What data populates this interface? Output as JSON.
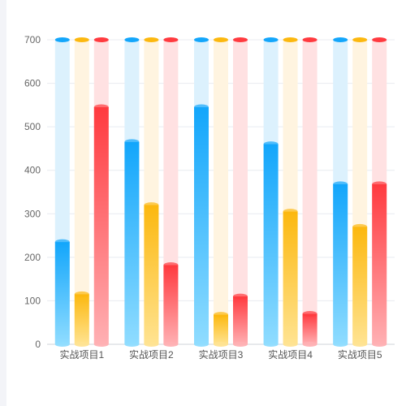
{
  "chart_data": {
    "type": "bar",
    "ylim": [
      0,
      700
    ],
    "yticks": [
      0,
      100,
      200,
      300,
      400,
      500,
      600,
      700
    ],
    "categories": [
      "实战项目1",
      "实战项目2",
      "实战项目3",
      "实战项目4",
      "实战项目5"
    ],
    "series": [
      {
        "values": [
          235,
          465,
          545,
          460,
          368
        ],
        "color_top": "#13a6fb",
        "color_bottom": "#8fdcff",
        "color_bg": "#dcf1fd"
      },
      {
        "values": [
          115,
          320,
          68,
          305,
          270
        ],
        "color_top": "#fcb80f",
        "color_bottom": "#ffe391",
        "color_bg": "#fff4e0"
      },
      {
        "values": [
          545,
          182,
          110,
          70,
          368
        ],
        "color_top": "#ff3a3f",
        "color_bottom": "#ffb0b3",
        "color_bg": "#ffe1e2"
      }
    ],
    "grid": true,
    "legend": false
  }
}
